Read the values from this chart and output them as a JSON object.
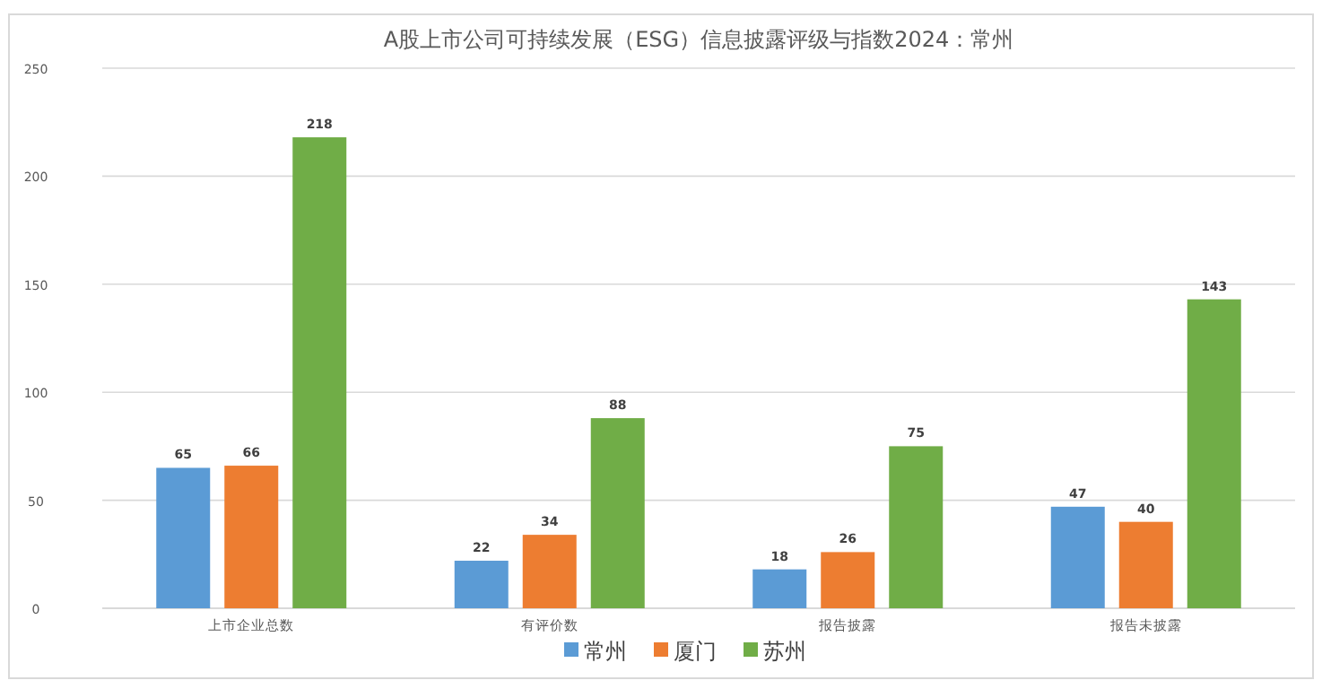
{
  "chart_data": {
    "type": "bar",
    "title": "A股上市公司可持续发展（ESG）信息披露评级与指数2024：常州",
    "categories": [
      "上市企业总数",
      "有评价数",
      "报告披露",
      "报告未披露"
    ],
    "series": [
      {
        "name": "常州",
        "color": "#5b9bd5",
        "values": [
          65,
          22,
          18,
          47
        ]
      },
      {
        "name": "厦门",
        "color": "#ed7d31",
        "values": [
          66,
          34,
          26,
          40
        ]
      },
      {
        "name": "苏州",
        "color": "#70ad47",
        "values": [
          218,
          88,
          75,
          143
        ]
      }
    ],
    "ylim": [
      0,
      250
    ],
    "yticks": [
      0,
      50,
      100,
      150,
      200,
      250
    ],
    "grid": "y",
    "legend": "bottom",
    "data_labels": true
  }
}
